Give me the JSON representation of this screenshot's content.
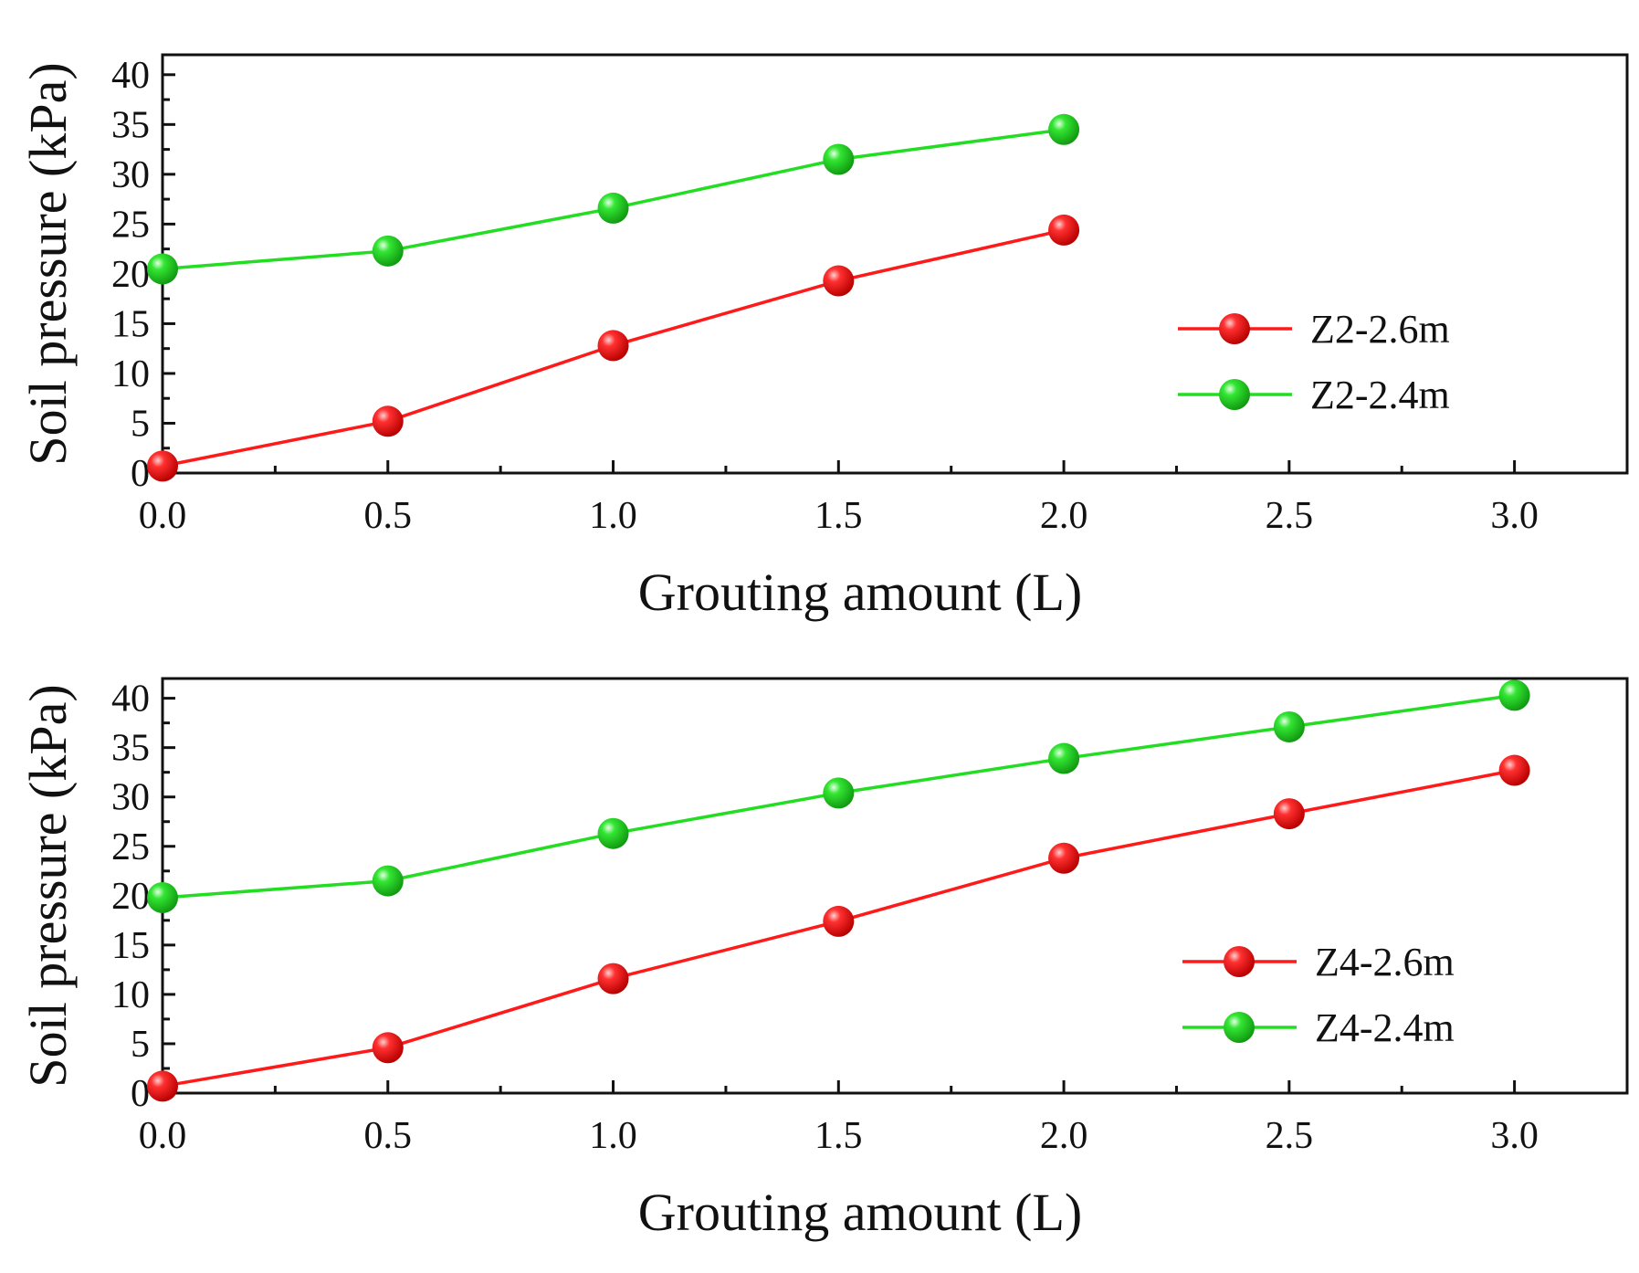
{
  "chart_data": [
    {
      "type": "line",
      "xlabel": "Grouting amount (L)",
      "ylabel": "Soil pressure (kPa)",
      "xlim": [
        0,
        3.25
      ],
      "ylim": [
        0,
        42
      ],
      "xticks": [
        "0.0",
        "0.5",
        "1.0",
        "1.5",
        "2.0",
        "2.5",
        "3.0"
      ],
      "yticks": [
        "0",
        "5",
        "10",
        "15",
        "20",
        "25",
        "30",
        "35",
        "40"
      ],
      "legend_position": "center-right",
      "grid": false,
      "series": [
        {
          "name": "Z2-2.6m",
          "color": "#ff1a1a",
          "x": [
            0.0,
            0.5,
            1.0,
            1.5,
            2.0
          ],
          "y": [
            0.7,
            5.2,
            12.8,
            19.3,
            24.4
          ]
        },
        {
          "name": "Z2-2.4m",
          "color": "#22dd22",
          "x": [
            0.0,
            0.5,
            1.0,
            1.5,
            2.0
          ],
          "y": [
            20.5,
            22.3,
            26.6,
            31.5,
            34.5
          ]
        }
      ]
    },
    {
      "type": "line",
      "xlabel": "Grouting amount (L)",
      "ylabel": "Soil pressure (kPa)",
      "xlim": [
        0,
        3.25
      ],
      "ylim": [
        0,
        42
      ],
      "xticks": [
        "0.0",
        "0.5",
        "1.0",
        "1.5",
        "2.0",
        "2.5",
        "3.0"
      ],
      "yticks": [
        "0",
        "5",
        "10",
        "15",
        "20",
        "25",
        "30",
        "35",
        "40"
      ],
      "legend_position": "center-right",
      "grid": false,
      "series": [
        {
          "name": "Z4-2.6m",
          "color": "#ff1a1a",
          "x": [
            0.0,
            0.5,
            1.0,
            1.5,
            2.0,
            2.5,
            3.0
          ],
          "y": [
            0.7,
            4.6,
            11.6,
            17.4,
            23.8,
            28.3,
            32.7
          ]
        },
        {
          "name": "Z4-2.4m",
          "color": "#22dd22",
          "x": [
            0.0,
            0.5,
            1.0,
            1.5,
            2.0,
            2.5,
            3.0
          ],
          "y": [
            19.8,
            21.5,
            26.3,
            30.4,
            33.9,
            37.1,
            40.3
          ]
        }
      ]
    }
  ]
}
